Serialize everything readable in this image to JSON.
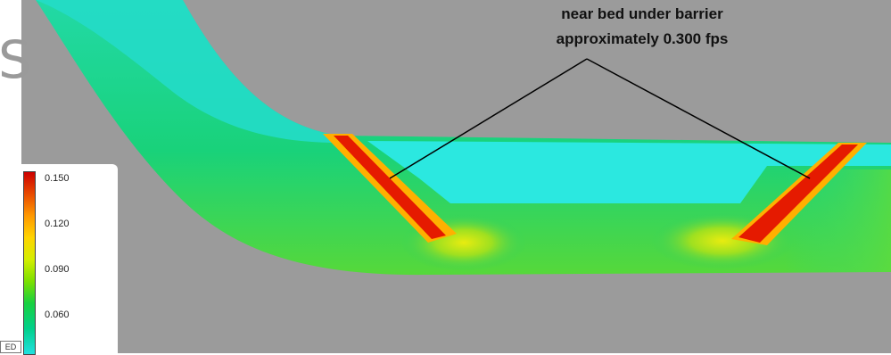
{
  "annotation": {
    "line1": "near bed under barrier",
    "line2": "approximately 0.300 fps"
  },
  "legend": {
    "ticks": [
      "0.150",
      "0.120",
      "0.090",
      "0.060"
    ],
    "colors": {
      "high": "#cc0000",
      "mid_high": "#ff9900",
      "mid": "#ffd400",
      "mid_low": "#18d040",
      "low": "#20e0e0"
    }
  },
  "background_color": "#9b9b9b",
  "channel_color": "#20e0c8",
  "barrier_color": "#e51a00",
  "edge_glyph": "S",
  "corner_tag": "ED"
}
